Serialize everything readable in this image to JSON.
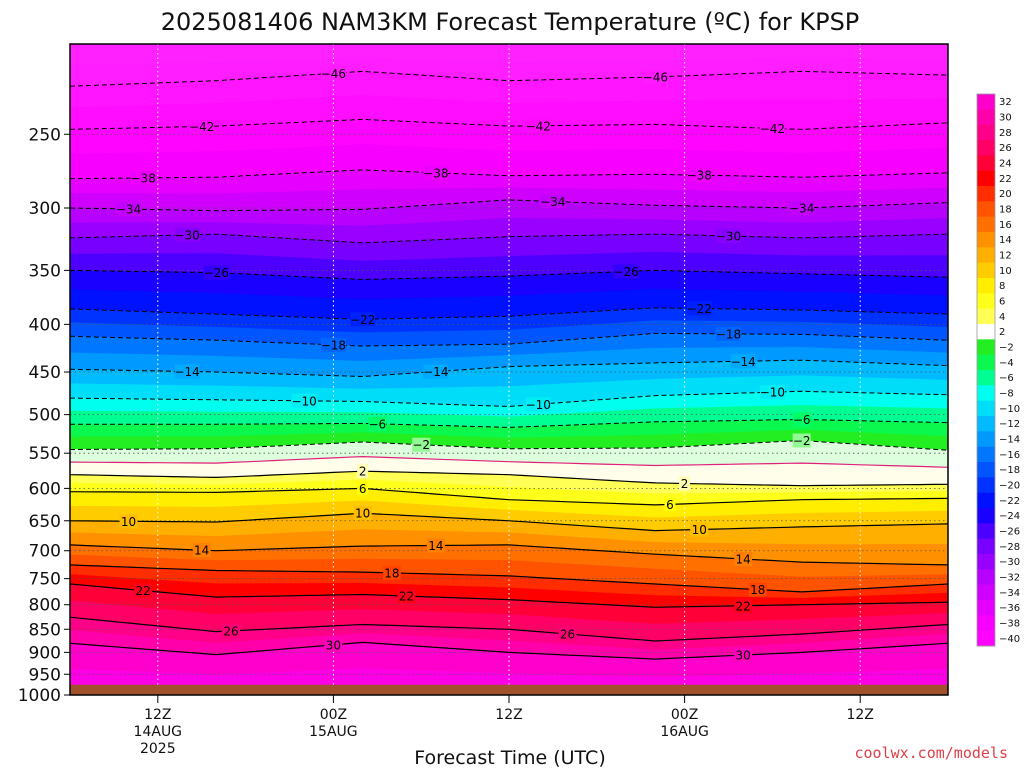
{
  "chart_data": {
    "type": "heatmap",
    "title": "2025081406 NAM3KM Forecast Temperature (ºC) for KPSP",
    "xlabel": "Forecast Time (UTC)",
    "ylabel": "",
    "credit": "coolwx.com/models",
    "x_ticks": [
      {
        "hour": 6,
        "lines": [
          "12Z",
          "14AUG",
          "2025"
        ]
      },
      {
        "hour": 18,
        "lines": [
          "00Z",
          "15AUG"
        ]
      },
      {
        "hour": 30,
        "lines": [
          "12Z"
        ]
      },
      {
        "hour": 42,
        "lines": [
          "00Z",
          "16AUG"
        ]
      },
      {
        "hour": 54,
        "lines": [
          "12Z"
        ]
      }
    ],
    "xlim": [
      0,
      60
    ],
    "y_ticks": [
      250,
      300,
      350,
      400,
      450,
      500,
      550,
      600,
      650,
      700,
      750,
      800,
      850,
      900,
      950,
      1000
    ],
    "ylim": [
      200,
      1000
    ],
    "y_scale": "log-pressure",
    "grid": true,
    "ground_pressure": 975,
    "colorbar_levels": [
      -40,
      -38,
      -36,
      -34,
      -32,
      -30,
      -28,
      -26,
      -24,
      -22,
      -20,
      -18,
      -16,
      -14,
      -12,
      -10,
      -8,
      -6,
      -4,
      -2,
      2,
      4,
      6,
      8,
      10,
      12,
      14,
      16,
      18,
      20,
      22,
      24,
      26,
      28,
      30,
      32
    ],
    "colorbar_label_text": [
      "−40",
      "−38",
      "−36",
      "−34",
      "−32",
      "−30",
      "−28",
      "−26",
      "−24",
      "−22",
      "−20",
      "−18",
      "−16",
      "−14",
      "−12",
      "−10",
      "−8",
      "−6",
      "−4",
      "−2",
      "2",
      "4",
      "6",
      "8",
      "10",
      "12",
      "14",
      "16",
      "18",
      "20",
      "22",
      "24",
      "26",
      "28",
      "30",
      "32"
    ],
    "colors": {
      "ground": "#a0522d",
      "freezing_line": "#e0207a",
      "warm_contour": "#000000",
      "cold_contour": "#000000",
      "credit": "#e0404a"
    },
    "contours": [
      {
        "t": -46,
        "label": "−46",
        "points": [
          [
            0,
            222
          ],
          [
            10,
            219
          ],
          [
            20,
            214
          ],
          [
            30,
            219
          ],
          [
            40,
            217
          ],
          [
            50,
            214
          ],
          [
            60,
            216
          ]
        ],
        "label_hours": [
          18,
          40
        ]
      },
      {
        "t": -42,
        "label": "−42",
        "points": [
          [
            0,
            247
          ],
          [
            10,
            245
          ],
          [
            20,
            241
          ],
          [
            30,
            245
          ],
          [
            40,
            244
          ],
          [
            50,
            247
          ],
          [
            60,
            243
          ]
        ],
        "label_hours": [
          9,
          32,
          48
        ]
      },
      {
        "t": -38,
        "label": "−38",
        "points": [
          [
            0,
            279
          ],
          [
            10,
            278
          ],
          [
            20,
            273
          ],
          [
            30,
            277
          ],
          [
            40,
            276
          ],
          [
            50,
            278
          ],
          [
            60,
            275
          ]
        ],
        "label_hours": [
          5,
          25,
          43
        ]
      },
      {
        "t": -34,
        "label": "−34",
        "points": [
          [
            0,
            300
          ],
          [
            10,
            302
          ],
          [
            20,
            301
          ],
          [
            30,
            294
          ],
          [
            40,
            298
          ],
          [
            50,
            300
          ],
          [
            60,
            296
          ]
        ],
        "label_hours": [
          4,
          33,
          50
        ]
      },
      {
        "t": -30,
        "label": "−30",
        "points": [
          [
            0,
            323
          ],
          [
            10,
            320
          ],
          [
            20,
            327
          ],
          [
            30,
            322
          ],
          [
            40,
            320
          ],
          [
            50,
            323
          ],
          [
            60,
            320
          ]
        ],
        "label_hours": [
          8,
          45
        ]
      },
      {
        "t": -26,
        "label": "−26",
        "points": [
          [
            0,
            350
          ],
          [
            10,
            352
          ],
          [
            20,
            358
          ],
          [
            30,
            355
          ],
          [
            40,
            350
          ],
          [
            50,
            353
          ],
          [
            60,
            356
          ]
        ],
        "label_hours": [
          10,
          38
        ]
      },
      {
        "t": -22,
        "label": "−22",
        "points": [
          [
            0,
            385
          ],
          [
            10,
            390
          ],
          [
            20,
            395
          ],
          [
            30,
            392
          ],
          [
            40,
            384
          ],
          [
            50,
            386
          ],
          [
            60,
            390
          ]
        ],
        "label_hours": [
          20,
          43
        ]
      },
      {
        "t": -18,
        "label": "−18",
        "points": [
          [
            0,
            412
          ],
          [
            10,
            416
          ],
          [
            20,
            422
          ],
          [
            30,
            420
          ],
          [
            40,
            409
          ],
          [
            50,
            410
          ],
          [
            60,
            416
          ]
        ],
        "label_hours": [
          18,
          45
        ]
      },
      {
        "t": -14,
        "label": "−14",
        "points": [
          [
            0,
            447
          ],
          [
            10,
            450
          ],
          [
            20,
            455
          ],
          [
            30,
            444
          ],
          [
            40,
            440
          ],
          [
            50,
            437
          ],
          [
            60,
            443
          ]
        ],
        "label_hours": [
          8,
          25,
          46
        ]
      },
      {
        "t": -10,
        "label": "−10",
        "points": [
          [
            0,
            480
          ],
          [
            10,
            482
          ],
          [
            20,
            484
          ],
          [
            30,
            490
          ],
          [
            40,
            477
          ],
          [
            50,
            472
          ],
          [
            60,
            476
          ]
        ],
        "label_hours": [
          16,
          32,
          48
        ]
      },
      {
        "t": -6,
        "label": "−6",
        "points": [
          [
            0,
            512
          ],
          [
            10,
            512
          ],
          [
            20,
            511
          ],
          [
            30,
            516
          ],
          [
            40,
            509
          ],
          [
            50,
            506
          ],
          [
            60,
            510
          ]
        ],
        "label_hours": [
          21,
          50
        ]
      },
      {
        "t": -2,
        "label": "−2",
        "points": [
          [
            0,
            545
          ],
          [
            10,
            544
          ],
          [
            20,
            535
          ],
          [
            30,
            544
          ],
          [
            40,
            543
          ],
          [
            50,
            533
          ],
          [
            60,
            546
          ]
        ],
        "label_hours": [
          24,
          50
        ]
      },
      {
        "t": 2,
        "label": "2",
        "points": [
          [
            0,
            580
          ],
          [
            10,
            584
          ],
          [
            20,
            575
          ],
          [
            30,
            580
          ],
          [
            40,
            592
          ],
          [
            50,
            596
          ],
          [
            60,
            594
          ]
        ],
        "label_hours": [
          20,
          42
        ]
      },
      {
        "t": 6,
        "label": "6",
        "points": [
          [
            0,
            605
          ],
          [
            10,
            606
          ],
          [
            20,
            600
          ],
          [
            30,
            617
          ],
          [
            40,
            625
          ],
          [
            50,
            617
          ],
          [
            60,
            615
          ]
        ],
        "label_hours": [
          20,
          41
        ]
      },
      {
        "t": 10,
        "label": "10",
        "points": [
          [
            0,
            650
          ],
          [
            10,
            652
          ],
          [
            20,
            638
          ],
          [
            30,
            650
          ],
          [
            40,
            666
          ],
          [
            50,
            660
          ],
          [
            60,
            655
          ]
        ],
        "label_hours": [
          4,
          20,
          43
        ]
      },
      {
        "t": 14,
        "label": "14",
        "points": [
          [
            0,
            690
          ],
          [
            10,
            700
          ],
          [
            20,
            692
          ],
          [
            30,
            690
          ],
          [
            40,
            706
          ],
          [
            50,
            720
          ],
          [
            60,
            725
          ]
        ],
        "label_hours": [
          9,
          25,
          46
        ]
      },
      {
        "t": 18,
        "label": "18",
        "points": [
          [
            0,
            725
          ],
          [
            10,
            735
          ],
          [
            20,
            738
          ],
          [
            30,
            745
          ],
          [
            40,
            760
          ],
          [
            50,
            775
          ],
          [
            60,
            760
          ]
        ],
        "label_hours": [
          22,
          47
        ]
      },
      {
        "t": 22,
        "label": "22",
        "points": [
          [
            0,
            760
          ],
          [
            10,
            785
          ],
          [
            20,
            780
          ],
          [
            30,
            790
          ],
          [
            40,
            805
          ],
          [
            50,
            800
          ],
          [
            60,
            795
          ]
        ],
        "label_hours": [
          5,
          23,
          46
        ]
      },
      {
        "t": 26,
        "label": "26",
        "points": [
          [
            0,
            825
          ],
          [
            10,
            855
          ],
          [
            20,
            840
          ],
          [
            30,
            850
          ],
          [
            40,
            875
          ],
          [
            50,
            860
          ],
          [
            60,
            840
          ]
        ],
        "label_hours": [
          11,
          34
        ]
      },
      {
        "t": 30,
        "label": "30",
        "points": [
          [
            0,
            880
          ],
          [
            10,
            905
          ],
          [
            20,
            878
          ],
          [
            30,
            900
          ],
          [
            40,
            915
          ],
          [
            50,
            900
          ],
          [
            60,
            880
          ]
        ],
        "label_hours": [
          18,
          46
        ]
      }
    ]
  }
}
